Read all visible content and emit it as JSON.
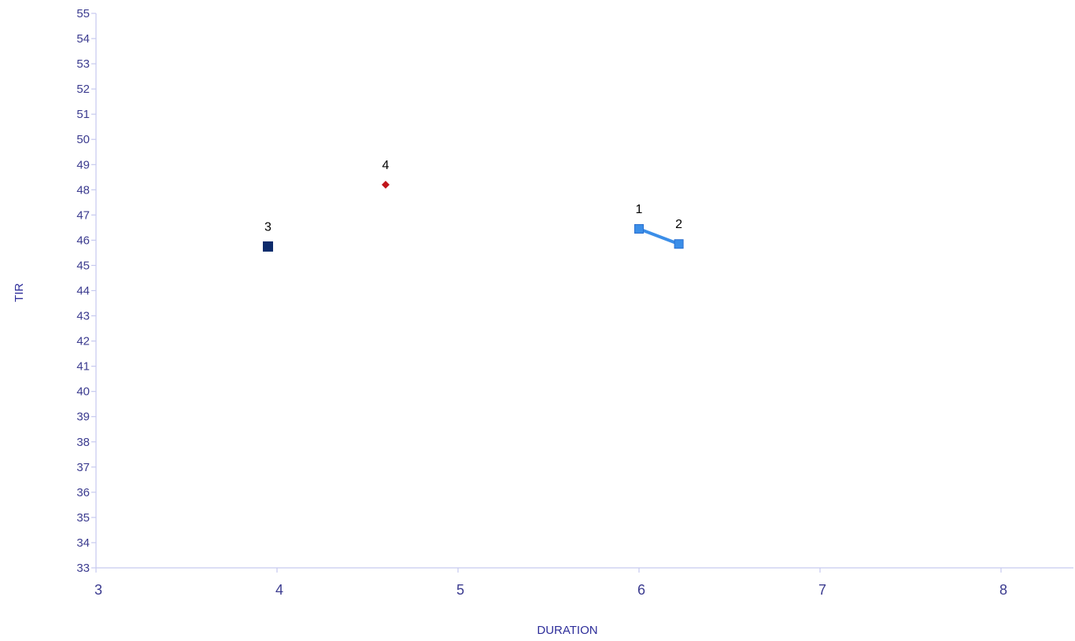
{
  "chart_data": {
    "type": "scatter",
    "title": "",
    "xlabel": "DURATION",
    "ylabel": "TIR",
    "xlim": [
      3,
      8.4
    ],
    "ylim": [
      33,
      55
    ],
    "x_ticks": [
      3,
      4,
      5,
      6,
      7,
      8
    ],
    "y_ticks": [
      33,
      34,
      35,
      36,
      37,
      38,
      39,
      40,
      41,
      42,
      43,
      44,
      45,
      46,
      47,
      48,
      49,
      50,
      51,
      52,
      53,
      54,
      55
    ],
    "grid": false,
    "legend": "none",
    "series": [
      {
        "marker": "square",
        "color": "#3b8ee8",
        "connected": true,
        "points": [
          {
            "label": "1",
            "x": 6.0,
            "y": 46.45
          },
          {
            "label": "2",
            "x": 6.22,
            "y": 45.85
          }
        ]
      },
      {
        "marker": "square",
        "color": "#0d2b6b",
        "connected": false,
        "points": [
          {
            "label": "3",
            "x": 3.95,
            "y": 45.75
          }
        ]
      },
      {
        "marker": "diamond",
        "color": "#c0151a",
        "connected": false,
        "points": [
          {
            "label": "4",
            "x": 4.6,
            "y": 48.2
          }
        ]
      }
    ],
    "axis_color": "#c6c9ef",
    "tick_text_color": "#3b3b8f"
  }
}
